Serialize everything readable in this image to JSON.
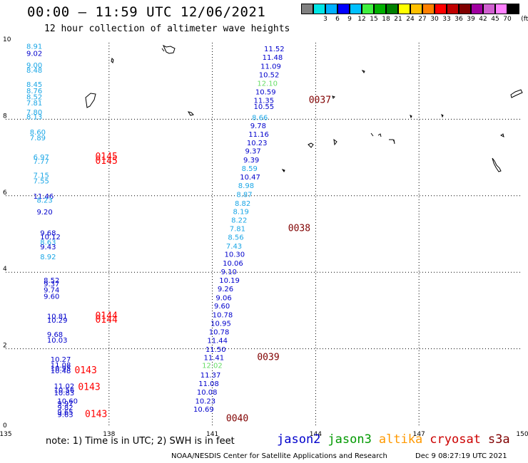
{
  "header": {
    "title": "00:00 – 11:59 UTC 12/06/2021",
    "subtitle": "12 hour collection of altimeter wave heights"
  },
  "legend": {
    "unit_label": "(ft)",
    "swatches": [
      {
        "label": "",
        "color": "#808080"
      },
      {
        "label": "3",
        "color": "#00e5e5"
      },
      {
        "label": "6",
        "color": "#00b0ff"
      },
      {
        "label": "9",
        "color": "#0000ff"
      },
      {
        "label": "12",
        "color": "#00c0ff"
      },
      {
        "label": "15",
        "color": "#40f040"
      },
      {
        "label": "18",
        "color": "#00b000"
      },
      {
        "label": "21",
        "color": "#008000"
      },
      {
        "label": "24",
        "color": "#ffff00"
      },
      {
        "label": "27",
        "color": "#ffc000"
      },
      {
        "label": "30",
        "color": "#ff8000"
      },
      {
        "label": "33",
        "color": "#ff0000"
      },
      {
        "label": "36",
        "color": "#c00000"
      },
      {
        "label": "39",
        "color": "#800000"
      },
      {
        "label": "42",
        "color": "#a000a0"
      },
      {
        "label": "45",
        "color": "#d060d0"
      },
      {
        "label": "70",
        "color": "#ff80ff"
      },
      {
        "label": "",
        "color": "#000000"
      }
    ]
  },
  "footer": {
    "note": "note:  1) Time is in UTC;  2) SWH is in feet",
    "satellites": [
      {
        "name": "jason2",
        "color": "#0000cc"
      },
      {
        "name": "jason3",
        "color": "#009900"
      },
      {
        "name": "altika",
        "color": "#ff9900"
      },
      {
        "name": "cryosat",
        "color": "#cc0000"
      },
      {
        "name": "s3a",
        "color": "#800000"
      }
    ],
    "credit": "NOAA/NESDIS Center for Satellite Applications and Research",
    "generated": "Dec  9 08:27:19 UTC 2021"
  },
  "chart_data": {
    "type": "scatter",
    "title": "00:00 – 11:59 UTC 12/06/2021",
    "subtitle": "12 hour collection of altimeter wave heights",
    "xlim": [
      135,
      150
    ],
    "ylim": [
      0,
      10
    ],
    "x_ticks": [
      "135",
      "138",
      "141",
      "144",
      "147",
      "150"
    ],
    "y_ticks": [
      "0",
      "2",
      "4",
      "6",
      "8",
      "10"
    ],
    "grid": true,
    "value_unit": "ft",
    "colors": {
      "c1": "#1aa6e6",
      "c2": "#0000cc",
      "c3": "#66dd66",
      "red": "#ff0000",
      "dark": "#800000"
    },
    "series": [
      {
        "name": "track-west",
        "points": [
          {
            "lon": 135.6,
            "lat": 9.84,
            "label": "8.91",
            "c": "c1"
          },
          {
            "lon": 135.6,
            "lat": 9.66,
            "label": "9.02",
            "c": "c2"
          },
          {
            "lon": 135.6,
            "lat": 9.35,
            "label": "9.00",
            "c": "c1"
          },
          {
            "lon": 135.6,
            "lat": 9.22,
            "label": "8.48",
            "c": "c1"
          },
          {
            "lon": 135.6,
            "lat": 8.85,
            "label": "8.45",
            "c": "c1"
          },
          {
            "lon": 135.6,
            "lat": 8.68,
            "label": "8.76",
            "c": "c1"
          },
          {
            "lon": 135.6,
            "lat": 8.52,
            "label": "8.52",
            "c": "c1"
          },
          {
            "lon": 135.6,
            "lat": 8.36,
            "label": "7.81",
            "c": "c1"
          },
          {
            "lon": 135.6,
            "lat": 8.12,
            "label": "7.80",
            "c": "c1"
          },
          {
            "lon": 135.6,
            "lat": 8.0,
            "label": "8.13",
            "c": "c1"
          },
          {
            "lon": 135.7,
            "lat": 7.6,
            "label": "8.60",
            "c": "c1"
          },
          {
            "lon": 135.7,
            "lat": 7.45,
            "label": "7.89",
            "c": "c1"
          },
          {
            "lon": 135.8,
            "lat": 6.95,
            "label": "6.97",
            "c": "c1"
          },
          {
            "lon": 135.8,
            "lat": 6.83,
            "label": "7.77",
            "c": "c1"
          },
          {
            "lon": 135.8,
            "lat": 6.47,
            "label": "7.15",
            "c": "c1"
          },
          {
            "lon": 135.8,
            "lat": 6.32,
            "label": "7.55",
            "c": "c1"
          },
          {
            "lon": 135.8,
            "lat": 5.92,
            "label": "11.46",
            "c": "c2"
          },
          {
            "lon": 135.9,
            "lat": 5.82,
            "label": "8.23",
            "c": "c1"
          },
          {
            "lon": 135.9,
            "lat": 5.51,
            "label": "9.20",
            "c": "c2"
          },
          {
            "lon": 136.0,
            "lat": 4.96,
            "label": "9.68",
            "c": "c2"
          },
          {
            "lon": 136.0,
            "lat": 4.86,
            "label": "10.12",
            "c": "c2"
          },
          {
            "lon": 136.0,
            "lat": 4.72,
            "label": "8.63",
            "c": "c1"
          },
          {
            "lon": 136.0,
            "lat": 4.6,
            "label": "9.43",
            "c": "c2"
          },
          {
            "lon": 136.0,
            "lat": 4.34,
            "label": "8.92",
            "c": "c1"
          },
          {
            "lon": 136.1,
            "lat": 3.72,
            "label": "8.52",
            "c": "c2"
          },
          {
            "lon": 136.1,
            "lat": 3.63,
            "label": "9.37",
            "c": "c2"
          },
          {
            "lon": 136.1,
            "lat": 3.47,
            "label": "9.74",
            "c": "c2"
          },
          {
            "lon": 136.1,
            "lat": 3.31,
            "label": "9.60",
            "c": "c2"
          },
          {
            "lon": 136.2,
            "lat": 2.78,
            "label": "10.81",
            "c": "c2"
          },
          {
            "lon": 136.2,
            "lat": 2.68,
            "label": "10.29",
            "c": "c2"
          },
          {
            "lon": 136.2,
            "lat": 2.31,
            "label": "9.68",
            "c": "c2"
          },
          {
            "lon": 136.2,
            "lat": 2.16,
            "label": "10.03",
            "c": "c2"
          },
          {
            "lon": 136.3,
            "lat": 1.66,
            "label": "10.27",
            "c": "c2"
          },
          {
            "lon": 136.3,
            "lat": 1.51,
            "label": "11.08",
            "c": "c2"
          },
          {
            "lon": 136.3,
            "lat": 1.42,
            "label": "10.95",
            "c": "c2"
          },
          {
            "lon": 136.3,
            "lat": 1.36,
            "label": "10.48",
            "c": "c2"
          },
          {
            "lon": 136.4,
            "lat": 0.96,
            "label": "11.02",
            "c": "c2"
          },
          {
            "lon": 136.4,
            "lat": 0.86,
            "label": "10.56",
            "c": "c2"
          },
          {
            "lon": 136.4,
            "lat": 0.78,
            "label": "10.83",
            "c": "c2"
          },
          {
            "lon": 136.5,
            "lat": 0.57,
            "label": "10.60",
            "c": "c2"
          },
          {
            "lon": 136.5,
            "lat": 0.5,
            "label": "9.97",
            "c": "c2"
          },
          {
            "lon": 136.5,
            "lat": 0.4,
            "label": "9.82",
            "c": "c2"
          },
          {
            "lon": 136.5,
            "lat": 0.28,
            "label": "9.65",
            "c": "c2"
          },
          {
            "lon": 136.5,
            "lat": 0.21,
            "label": "9.63",
            "c": "c2"
          }
        ]
      },
      {
        "name": "track-east",
        "points": [
          {
            "lon": 142.5,
            "lat": 9.78,
            "label": "11.52",
            "c": "c2"
          },
          {
            "lon": 142.45,
            "lat": 9.55,
            "label": "11.48",
            "c": "c2"
          },
          {
            "lon": 142.4,
            "lat": 9.32,
            "label": "11.09",
            "c": "c2"
          },
          {
            "lon": 142.35,
            "lat": 9.1,
            "label": "10.52",
            "c": "c2"
          },
          {
            "lon": 142.3,
            "lat": 8.87,
            "label": "12.10",
            "c": "c3"
          },
          {
            "lon": 142.25,
            "lat": 8.65,
            "label": "10.59",
            "c": "c2"
          },
          {
            "lon": 142.2,
            "lat": 8.43,
            "label": "11.35",
            "c": "c2"
          },
          {
            "lon": 142.2,
            "lat": 8.27,
            "label": "10.55",
            "c": "c2"
          },
          {
            "lon": 142.15,
            "lat": 7.98,
            "label": "8.66",
            "c": "c1"
          },
          {
            "lon": 142.1,
            "lat": 7.77,
            "label": "9.78",
            "c": "c2"
          },
          {
            "lon": 142.05,
            "lat": 7.54,
            "label": "11.16",
            "c": "c2"
          },
          {
            "lon": 142.0,
            "lat": 7.32,
            "label": "10.23",
            "c": "c2"
          },
          {
            "lon": 141.95,
            "lat": 7.1,
            "label": "9.37",
            "c": "c2"
          },
          {
            "lon": 141.9,
            "lat": 6.87,
            "label": "9.39",
            "c": "c2"
          },
          {
            "lon": 141.85,
            "lat": 6.65,
            "label": "8.59",
            "c": "c1"
          },
          {
            "lon": 141.8,
            "lat": 6.42,
            "label": "10.47",
            "c": "c2"
          },
          {
            "lon": 141.75,
            "lat": 6.2,
            "label": "8.98",
            "c": "c1"
          },
          {
            "lon": 141.7,
            "lat": 5.97,
            "label": "8.87",
            "c": "c1"
          },
          {
            "lon": 141.65,
            "lat": 5.74,
            "label": "8.82",
            "c": "c1"
          },
          {
            "lon": 141.6,
            "lat": 5.52,
            "label": "8.19",
            "c": "c1"
          },
          {
            "lon": 141.55,
            "lat": 5.3,
            "label": "8.22",
            "c": "c1"
          },
          {
            "lon": 141.5,
            "lat": 5.07,
            "label": "7.81",
            "c": "c1"
          },
          {
            "lon": 141.45,
            "lat": 4.85,
            "label": "8.56",
            "c": "c1"
          },
          {
            "lon": 141.4,
            "lat": 4.62,
            "label": "7.43",
            "c": "c1"
          },
          {
            "lon": 141.35,
            "lat": 4.4,
            "label": "10.30",
            "c": "c2"
          },
          {
            "lon": 141.3,
            "lat": 4.17,
            "label": "10.06",
            "c": "c2"
          },
          {
            "lon": 141.25,
            "lat": 3.95,
            "label": "9.10",
            "c": "c2"
          },
          {
            "lon": 141.2,
            "lat": 3.72,
            "label": "10.19",
            "c": "c2"
          },
          {
            "lon": 141.15,
            "lat": 3.5,
            "label": "9.26",
            "c": "c2"
          },
          {
            "lon": 141.1,
            "lat": 3.27,
            "label": "9.06",
            "c": "c2"
          },
          {
            "lon": 141.05,
            "lat": 3.05,
            "label": "9.60",
            "c": "c2"
          },
          {
            "lon": 141.0,
            "lat": 2.82,
            "label": "10.78",
            "c": "c2"
          },
          {
            "lon": 140.95,
            "lat": 2.6,
            "label": "10.95",
            "c": "c2"
          },
          {
            "lon": 140.9,
            "lat": 2.37,
            "label": "10.78",
            "c": "c2"
          },
          {
            "lon": 140.85,
            "lat": 2.15,
            "label": "11.44",
            "c": "c2"
          },
          {
            "lon": 140.8,
            "lat": 1.92,
            "label": "11.50",
            "c": "c2"
          },
          {
            "lon": 140.75,
            "lat": 1.7,
            "label": "11.41",
            "c": "c2"
          },
          {
            "lon": 140.7,
            "lat": 1.5,
            "label": "12.02",
            "c": "c3"
          },
          {
            "lon": 140.65,
            "lat": 1.25,
            "label": "11.37",
            "c": "c2"
          },
          {
            "lon": 140.6,
            "lat": 1.02,
            "label": "11.08",
            "c": "c2"
          },
          {
            "lon": 140.55,
            "lat": 0.8,
            "label": "10.08",
            "c": "c2"
          },
          {
            "lon": 140.5,
            "lat": 0.57,
            "label": "10.23",
            "c": "c2"
          },
          {
            "lon": 140.45,
            "lat": 0.35,
            "label": "10.69",
            "c": "c2"
          }
        ]
      }
    ],
    "time_labels": [
      {
        "lon": 137.6,
        "lat": 6.95,
        "label": "0145",
        "c": "red"
      },
      {
        "lon": 137.6,
        "lat": 6.83,
        "label": "0145",
        "c": "red"
      },
      {
        "lon": 137.6,
        "lat": 2.78,
        "label": "0144",
        "c": "red"
      },
      {
        "lon": 137.6,
        "lat": 2.68,
        "label": "0144",
        "c": "red"
      },
      {
        "lon": 137.0,
        "lat": 1.36,
        "label": "0143",
        "c": "red"
      },
      {
        "lon": 137.1,
        "lat": 0.92,
        "label": "0143",
        "c": "red"
      },
      {
        "lon": 137.3,
        "lat": 0.21,
        "label": "0143",
        "c": "red"
      },
      {
        "lon": 143.8,
        "lat": 8.43,
        "label": "0037",
        "c": "dark"
      },
      {
        "lon": 143.2,
        "lat": 5.07,
        "label": "0038",
        "c": "dark"
      },
      {
        "lon": 142.3,
        "lat": 1.7,
        "label": "0039",
        "c": "dark"
      },
      {
        "lon": 141.4,
        "lat": 0.1,
        "label": "0040",
        "c": "dark"
      }
    ]
  }
}
